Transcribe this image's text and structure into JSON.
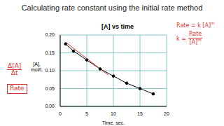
{
  "header": {
    "title": "Calculating rate constant using the initial rate method"
  },
  "annotations": {
    "left": [
      {
        "numerator": "Δ[A]",
        "denominator": "Δt"
      },
      {
        "text": "Rate",
        "boxed": true
      }
    ],
    "right": [
      {
        "text": "Rate = k [A]",
        "sup": "m"
      },
      {
        "left": "k =",
        "numerator": "Rate",
        "denominator": "[A]",
        "sup": "m"
      }
    ],
    "color": "#e0302c"
  },
  "chart_data": {
    "type": "line",
    "title": "[A] vs time",
    "xlabel": "Time, sec.",
    "ylabel": "[A], mol/L",
    "xlim": [
      0,
      20
    ],
    "xticks": [
      0,
      5,
      10,
      15,
      20
    ],
    "ylim": [
      0,
      0.2
    ],
    "yticks": [
      {
        "value": 0,
        "label": "0.00"
      },
      {
        "value": 0.05,
        "label": "0.05"
      },
      {
        "value": 0.1,
        "label": "0.10"
      },
      {
        "value": 0.15,
        "label": "0.15"
      },
      {
        "value": 0.2,
        "label": "0.20"
      }
    ],
    "grid": true,
    "series": [
      {
        "color": "#000000",
        "marker": "circle",
        "x": [
          1,
          2.5,
          5,
          7.5,
          10,
          12.5,
          15,
          17.5
        ],
        "values": [
          0.175,
          0.155,
          0.13,
          0.105,
          0.085,
          0.065,
          0.05,
          0.035
        ]
      },
      {
        "color": "#e0302c",
        "line_style": "solid",
        "x": [
          1,
          9
        ],
        "values": [
          0.18,
          0.088
        ]
      }
    ]
  }
}
